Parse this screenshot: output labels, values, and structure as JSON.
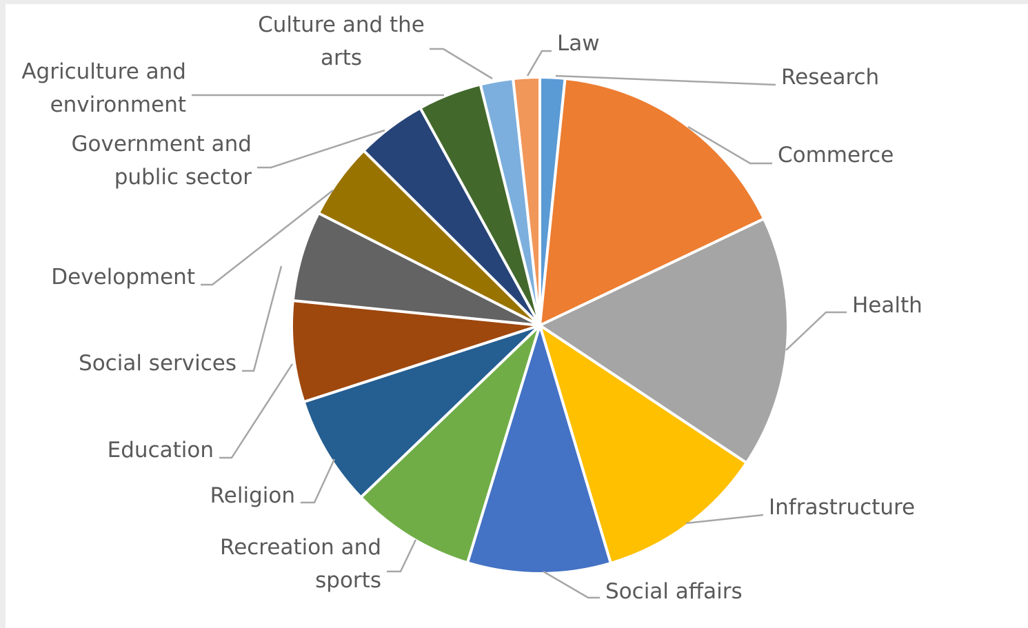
{
  "chart_data": {
    "type": "pie",
    "title": "",
    "start_angle_deg": 0,
    "direction": "clockwise",
    "slices": [
      {
        "label": [
          "Research"
        ],
        "value": 1.6,
        "color": "#5B9BD5"
      },
      {
        "label": [
          "Commerce"
        ],
        "value": 16.1,
        "color": "#ED7D31"
      },
      {
        "label": [
          "Health"
        ],
        "value": 16.2,
        "color": "#A5A5A5"
      },
      {
        "label": [
          "Infrastructure"
        ],
        "value": 10.9,
        "color": "#FFC000"
      },
      {
        "label": [
          "Social affairs"
        ],
        "value": 9.2,
        "color": "#4472C4"
      },
      {
        "label": [
          "Recreation and",
          "sports"
        ],
        "value": 8.0,
        "color": "#70AD47"
      },
      {
        "label": [
          "Religion"
        ],
        "value": 7.1,
        "color": "#255E91"
      },
      {
        "label": [
          "Education"
        ],
        "value": 6.5,
        "color": "#9E480E"
      },
      {
        "label": [
          "Social services"
        ],
        "value": 5.8,
        "color": "#636363"
      },
      {
        "label": [
          "Development"
        ],
        "value": 4.9,
        "color": "#997300"
      },
      {
        "label": [
          "Government and",
          "public sector"
        ],
        "value": 4.5,
        "color": "#264478"
      },
      {
        "label": [
          "Agriculture and",
          "environment"
        ],
        "value": 4.1,
        "color": "#43682B"
      },
      {
        "label": [
          "Culture and the",
          "arts"
        ],
        "value": 2.1,
        "color": "#7CAFDD"
      },
      {
        "label": [
          "Law"
        ],
        "value": 1.7,
        "color": "#F1975A"
      }
    ]
  }
}
